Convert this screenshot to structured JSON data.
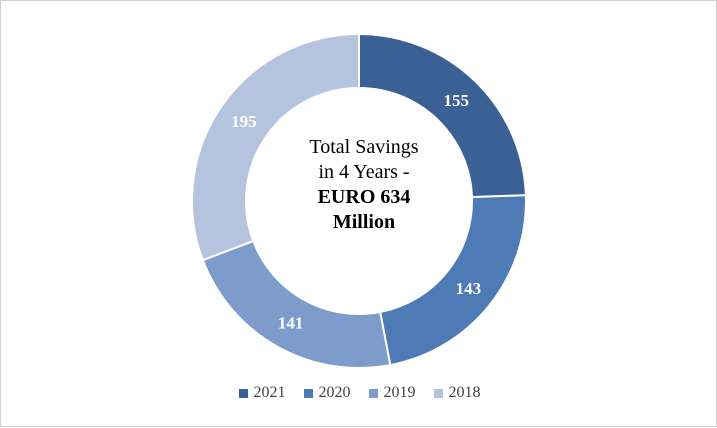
{
  "chart_data": {
    "type": "pie",
    "variant": "donut",
    "categories": [
      "2021",
      "2020",
      "2019",
      "2018"
    ],
    "values": [
      155,
      143,
      141,
      195
    ],
    "colors": [
      "#3b6096",
      "#4e7ab6",
      "#7e9ccb",
      "#b4c4df"
    ],
    "center_text": {
      "line1": "Total Savings",
      "line2": "in 4 Years -",
      "line3": "EURO 634",
      "line4": "Million"
    },
    "legend": {
      "position": "bottom",
      "entries": [
        "2021",
        "2020",
        "2019",
        "2018"
      ]
    }
  }
}
